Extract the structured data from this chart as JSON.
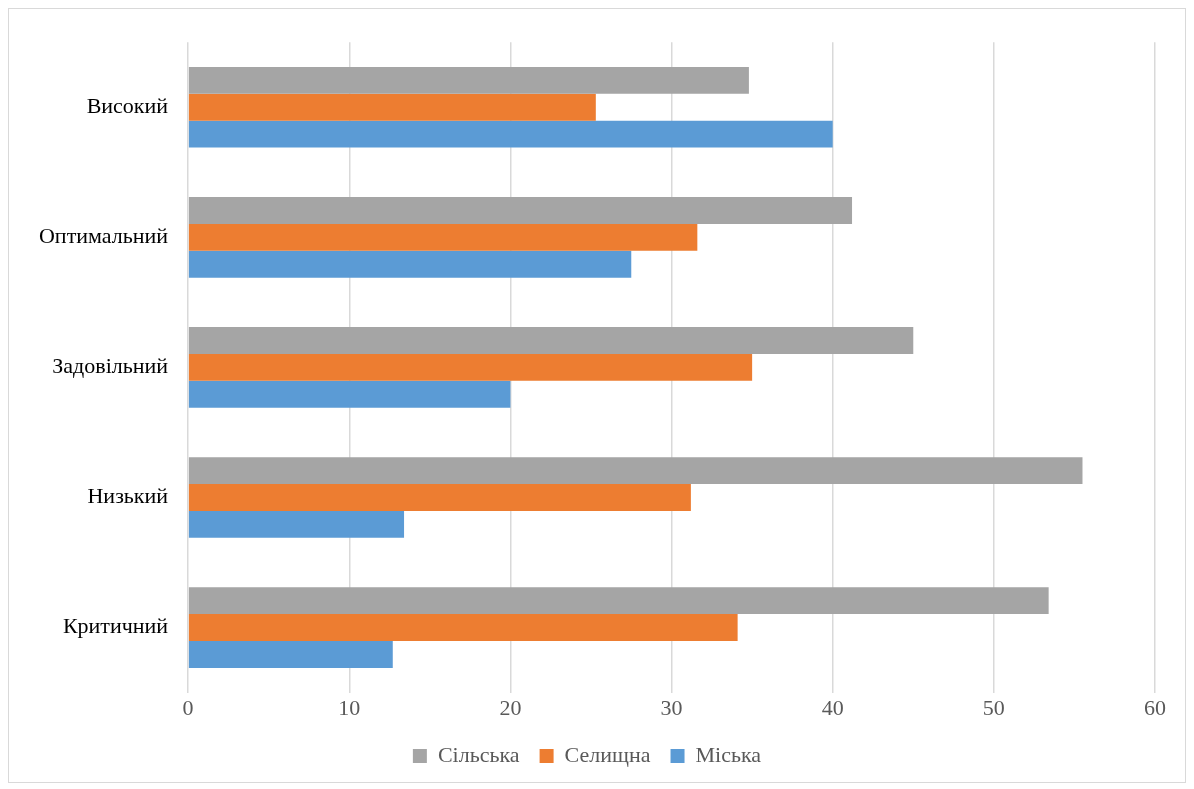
{
  "chart_data": {
    "type": "bar",
    "orientation": "horizontal",
    "categories": [
      "Високий",
      "Оптимальний",
      "Задовільний",
      "Низький",
      "Критичний"
    ],
    "series": [
      {
        "name": "Сільська",
        "color": "#a5a5a5",
        "values": [
          34.8,
          41.2,
          45,
          55.5,
          53.4
        ]
      },
      {
        "name": "Селищна",
        "color": "#ed7d31",
        "values": [
          25.3,
          31.6,
          35,
          31.2,
          34.1
        ]
      },
      {
        "name": "Міська",
        "color": "#5b9bd5",
        "values": [
          40,
          27.5,
          20,
          13.4,
          12.7
        ]
      }
    ],
    "xlim": [
      0,
      60
    ],
    "xticks": [
      0,
      10,
      20,
      30,
      40,
      50,
      60
    ],
    "grid": "x",
    "legend": "bottom"
  }
}
